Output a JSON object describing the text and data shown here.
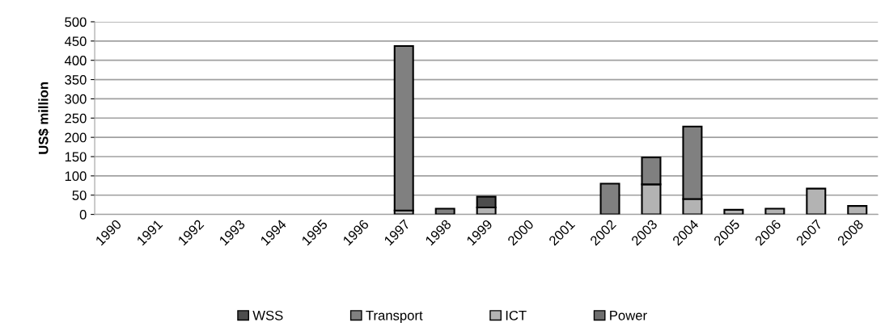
{
  "chart_data": {
    "type": "bar",
    "stacked": true,
    "ylabel": "US$ million",
    "categories": [
      "1990",
      "1991",
      "1992",
      "1993",
      "1994",
      "1995",
      "1996",
      "1997",
      "1998",
      "1999",
      "2000",
      "2001",
      "2002",
      "2003",
      "2004",
      "2005",
      "2006",
      "2007",
      "2008"
    ],
    "series": [
      {
        "name": "Power",
        "color": "#6e6e6e",
        "values": [
          0,
          0,
          0,
          0,
          0,
          0,
          0,
          0,
          0,
          0,
          0,
          0,
          0,
          0,
          0,
          0,
          0,
          0,
          0
        ]
      },
      {
        "name": "ICT",
        "color": "#b3b3b3",
        "values": [
          0,
          0,
          0,
          0,
          0,
          0,
          0,
          10,
          0,
          18,
          0,
          0,
          0,
          78,
          40,
          12,
          15,
          67,
          22
        ]
      },
      {
        "name": "Transport",
        "color": "#808080",
        "values": [
          0,
          0,
          0,
          0,
          0,
          0,
          0,
          427,
          15,
          0,
          0,
          0,
          80,
          70,
          188,
          0,
          0,
          0,
          0
        ]
      },
      {
        "name": "WSS",
        "color": "#4d4d4d",
        "values": [
          0,
          0,
          0,
          0,
          0,
          0,
          0,
          0,
          0,
          28,
          0,
          0,
          0,
          0,
          0,
          0,
          0,
          0,
          0
        ]
      }
    ],
    "ylim": [
      0,
      500
    ],
    "yticks": [
      0,
      50,
      100,
      150,
      200,
      250,
      300,
      350,
      400,
      450,
      500
    ],
    "grid": "y",
    "legend": "bottom"
  }
}
